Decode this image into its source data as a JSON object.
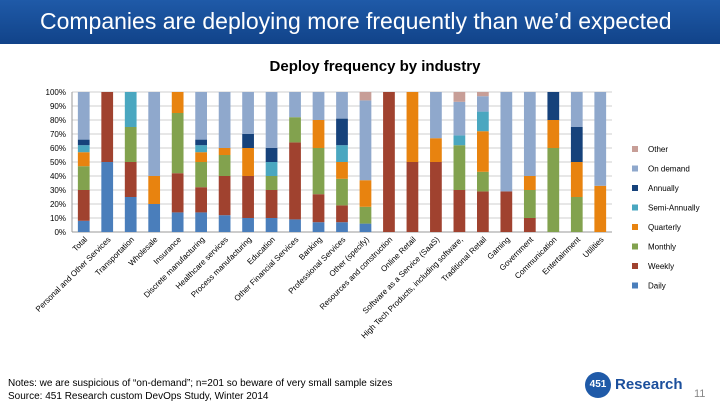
{
  "slide": {
    "title": "Companies are deploying more frequently than we’d expected",
    "notes": "Notes: we are suspicious of “on-demand”; n=201 so beware of very small sample sizes",
    "source": "Source: 451 Research custom DevOps Study, Winter 2014",
    "page_number": "11",
    "logo_mark": "451",
    "logo_text": "Research"
  },
  "colors": {
    "Daily": "#4a7ebb",
    "Weekly": "#a0422f",
    "Monthly": "#82a24e",
    "Quarterly": "#e8830f",
    "Semi-Annually": "#4aa7c0",
    "Annually": "#16427b",
    "On demand": "#8fa8cc",
    "Other": "#c79e97"
  },
  "chart_data": {
    "type": "bar",
    "stacked": true,
    "title": "Deploy frequency by industry",
    "ylim": [
      0,
      100
    ],
    "yticks": [
      "0%",
      "10%",
      "20%",
      "30%",
      "40%",
      "50%",
      "60%",
      "70%",
      "80%",
      "90%",
      "100%"
    ],
    "grid": true,
    "legend_position": "right",
    "legend_order": [
      "Other",
      "On demand",
      "Annually",
      "Semi-Annually",
      "Quarterly",
      "Monthly",
      "Weekly",
      "Daily"
    ],
    "categories": [
      "Total",
      "Personal and Other Services",
      "Transportation",
      "Wholesale",
      "Insurance",
      "Discrete manufacturing",
      "Healthcare services",
      "Process manufacturing",
      "Education",
      "Other Financial Services",
      "Banking",
      "Professional Services",
      "Other (specify)",
      "Resources and construction",
      "Online Retail",
      "Software as a Service (SaaS)",
      "High Tech Products, including software,",
      "Traditional Retail",
      "Gaming",
      "Government",
      "Communication",
      "Entertainment",
      "Utilities"
    ],
    "series": [
      {
        "name": "Daily",
        "values": [
          8,
          50,
          25,
          20,
          14,
          14,
          12,
          10,
          10,
          9,
          7,
          7,
          6,
          0,
          0,
          0,
          0,
          0,
          0,
          0,
          0,
          0,
          0
        ]
      },
      {
        "name": "Weekly",
        "values": [
          22,
          50,
          25,
          0,
          28,
          18,
          28,
          30,
          20,
          55,
          20,
          12,
          0,
          100,
          50,
          50,
          30,
          29,
          29,
          10,
          0,
          0,
          0
        ]
      },
      {
        "name": "Monthly",
        "values": [
          17,
          0,
          25,
          0,
          43,
          18,
          15,
          0,
          10,
          18,
          33,
          19,
          12,
          0,
          0,
          0,
          32,
          14,
          0,
          20,
          60,
          25,
          0
        ]
      },
      {
        "name": "Quarterly",
        "values": [
          10,
          0,
          0,
          20,
          15,
          7,
          5,
          20,
          0,
          0,
          20,
          12,
          19,
          0,
          50,
          17,
          0,
          29,
          0,
          10,
          20,
          25,
          33
        ]
      },
      {
        "name": "Semi-Annually",
        "values": [
          5,
          0,
          25,
          0,
          0,
          5,
          0,
          0,
          10,
          0,
          0,
          12,
          0,
          0,
          0,
          0,
          7,
          14,
          0,
          0,
          0,
          0,
          0
        ]
      },
      {
        "name": "Annually",
        "values": [
          4,
          0,
          0,
          0,
          0,
          4,
          0,
          10,
          10,
          0,
          0,
          19,
          0,
          0,
          0,
          0,
          0,
          0,
          0,
          0,
          20,
          25,
          0
        ]
      },
      {
        "name": "On demand",
        "values": [
          34,
          0,
          0,
          60,
          0,
          34,
          40,
          30,
          40,
          18,
          20,
          19,
          57,
          0,
          0,
          33,
          24,
          11,
          71,
          60,
          0,
          25,
          67
        ]
      },
      {
        "name": "Other",
        "values": [
          0,
          0,
          0,
          0,
          0,
          0,
          0,
          0,
          0,
          0,
          0,
          0,
          6,
          0,
          0,
          0,
          7,
          3,
          0,
          0,
          0,
          0,
          0
        ]
      }
    ]
  }
}
